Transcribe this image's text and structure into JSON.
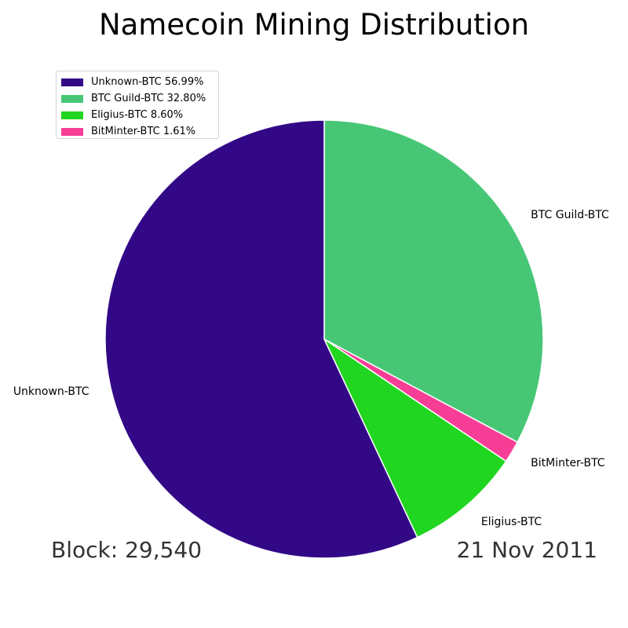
{
  "chart_data": {
    "type": "pie",
    "title": "Namecoin Mining Distribution",
    "slices": [
      {
        "label": "Unknown-BTC",
        "value": 56.99,
        "color": "#320887",
        "legend": "Unknown-BTC 56.99%"
      },
      {
        "label": "BTC Guild-BTC",
        "value": 32.8,
        "color": "#47c775",
        "legend": "BTC Guild-BTC 32.80%"
      },
      {
        "label": "Eligius-BTC",
        "value": 8.6,
        "color": "#21d621",
        "legend": "Eligius-BTC 8.60%"
      },
      {
        "label": "BitMinter-BTC",
        "value": 1.61,
        "color": "#f73e96",
        "legend": "BitMinter-BTC 1.61%"
      }
    ],
    "draw_order": [
      "BTC Guild-BTC",
      "BitMinter-BTC",
      "Eligius-BTC",
      "Unknown-BTC"
    ],
    "start_angle": "12 o'clock",
    "direction": "clockwise",
    "legend_position": "upper-left"
  },
  "footer": {
    "block": "Block: 29,540",
    "date": "21 Nov 2011"
  }
}
